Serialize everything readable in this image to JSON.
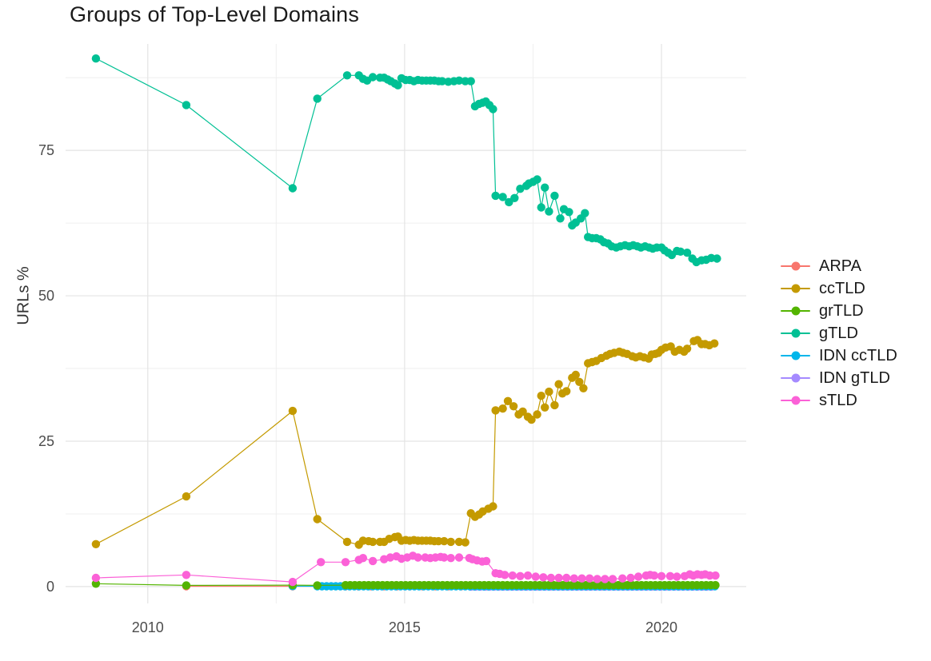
{
  "title": "Groups of Top-Level Domains",
  "axes": {
    "y_label": "URLs %",
    "x_tick_labels": [
      "2010",
      "2015",
      "2020"
    ],
    "y_tick_labels": [
      "0",
      "25",
      "50",
      "75"
    ]
  },
  "legend": {
    "items": [
      {
        "label": "ARPA",
        "color": "#F8766D"
      },
      {
        "label": "ccTLD",
        "color": "#C49A00"
      },
      {
        "label": "grTLD",
        "color": "#53B400"
      },
      {
        "label": "gTLD",
        "color": "#00C094"
      },
      {
        "label": "IDN ccTLD",
        "color": "#00B6EB"
      },
      {
        "label": "IDN gTLD",
        "color": "#A58AFF"
      },
      {
        "label": "sTLD",
        "color": "#FB61D7"
      }
    ]
  },
  "colors": {
    "grid_major": "#e4e4e4",
    "grid_minor": "#efefef",
    "tick_text": "#4d4d4d",
    "title_text": "#1a1a1a"
  },
  "chart_data": {
    "type": "line",
    "title": "Groups of Top-Level Domains",
    "xlabel": "",
    "ylabel": "URLs %",
    "xlim": [
      2008.4,
      2021.65
    ],
    "ylim": [
      -2.9,
      93.3
    ],
    "x_major_ticks": [
      2010,
      2015,
      2020
    ],
    "x_minor_gridlines": [
      2012.5,
      2017.5
    ],
    "y_major_ticks": [
      0,
      25,
      50,
      75
    ],
    "y_minor_gridlines": [
      12.5,
      37.5,
      62.5,
      87.5
    ],
    "grid": "major+minor",
    "legend_position": "right",
    "markers": true,
    "draw_order": [
      "ARPA",
      "IDN gTLD",
      "IDN ccTLD",
      "grTLD",
      "sTLD",
      "ccTLD",
      "gTLD"
    ],
    "series": [
      {
        "name": "ARPA",
        "color": "#F8766D",
        "points": [
          [
            2010.75,
            0.05
          ],
          [
            2012.82,
            0.05
          ]
        ],
        "runs": [
          {
            "from": 2013.85,
            "to": 2021.05,
            "step": 0.25,
            "value": 0.05
          }
        ]
      },
      {
        "name": "ccTLD",
        "color": "#C49A00",
        "points": [
          [
            2008.99,
            7.3
          ],
          [
            2010.75,
            15.5
          ],
          [
            2012.82,
            30.2
          ],
          [
            2013.3,
            11.6
          ],
          [
            2013.88,
            7.7
          ],
          [
            2014.11,
            7.2
          ],
          [
            2014.19,
            7.9
          ],
          [
            2014.3,
            7.8
          ],
          [
            2014.38,
            7.7
          ],
          [
            2014.52,
            7.7
          ],
          [
            2014.6,
            7.7
          ],
          [
            2014.7,
            8.2
          ],
          [
            2014.81,
            8.5
          ],
          [
            2014.87,
            8.6
          ],
          [
            2014.94,
            7.9
          ],
          [
            2015.02,
            8.0
          ],
          [
            2015.1,
            7.9
          ],
          [
            2015.18,
            8.0
          ],
          [
            2015.26,
            7.9
          ],
          [
            2015.34,
            7.9
          ],
          [
            2015.42,
            7.9
          ],
          [
            2015.5,
            7.9
          ],
          [
            2015.58,
            7.8
          ],
          [
            2015.66,
            7.8
          ],
          [
            2015.77,
            7.8
          ],
          [
            2015.9,
            7.7
          ],
          [
            2016.06,
            7.7
          ],
          [
            2016.18,
            7.6
          ],
          [
            2016.29,
            12.6
          ],
          [
            2016.37,
            12.0
          ],
          [
            2016.45,
            12.4
          ],
          [
            2016.52,
            12.9
          ],
          [
            2016.63,
            13.4
          ],
          [
            2016.72,
            13.8
          ],
          [
            2016.77,
            30.3
          ],
          [
            2016.91,
            30.6
          ],
          [
            2017.01,
            31.9
          ],
          [
            2017.12,
            31.0
          ],
          [
            2017.22,
            29.6
          ],
          [
            2017.3,
            30.1
          ],
          [
            2017.4,
            29.2
          ],
          [
            2017.47,
            28.7
          ],
          [
            2017.58,
            29.6
          ],
          [
            2017.66,
            32.8
          ],
          [
            2017.73,
            30.8
          ],
          [
            2017.81,
            33.5
          ],
          [
            2017.92,
            31.2
          ],
          [
            2018.0,
            34.8
          ],
          [
            2018.07,
            33.2
          ],
          [
            2018.15,
            33.6
          ],
          [
            2018.26,
            35.9
          ],
          [
            2018.33,
            36.4
          ],
          [
            2018.4,
            35.2
          ],
          [
            2018.48,
            34.1
          ],
          [
            2018.57,
            38.4
          ],
          [
            2018.65,
            38.6
          ],
          [
            2018.73,
            38.8
          ],
          [
            2018.83,
            39.3
          ],
          [
            2018.93,
            39.7
          ],
          [
            2019.0,
            40.0
          ],
          [
            2019.08,
            40.2
          ],
          [
            2019.18,
            40.4
          ],
          [
            2019.25,
            40.2
          ],
          [
            2019.33,
            40.0
          ],
          [
            2019.43,
            39.6
          ],
          [
            2019.5,
            39.4
          ],
          [
            2019.58,
            39.6
          ],
          [
            2019.66,
            39.4
          ],
          [
            2019.75,
            39.2
          ],
          [
            2019.81,
            39.9
          ],
          [
            2019.88,
            40.0
          ],
          [
            2019.94,
            40.2
          ],
          [
            2020.0,
            40.7
          ],
          [
            2020.08,
            41.1
          ],
          [
            2020.18,
            41.3
          ],
          [
            2020.26,
            40.4
          ],
          [
            2020.35,
            40.7
          ],
          [
            2020.44,
            40.4
          ],
          [
            2020.5,
            40.9
          ],
          [
            2020.63,
            42.2
          ],
          [
            2020.7,
            42.4
          ],
          [
            2020.78,
            41.7
          ],
          [
            2020.85,
            41.7
          ],
          [
            2020.93,
            41.5
          ],
          [
            2021.03,
            41.8
          ]
        ],
        "runs": []
      },
      {
        "name": "grTLD",
        "color": "#53B400",
        "points": [
          [
            2008.99,
            0.5
          ],
          [
            2010.75,
            0.2
          ],
          [
            2012.82,
            0.25
          ],
          [
            2013.3,
            0.2
          ]
        ],
        "runs": [
          {
            "from": 2013.85,
            "to": 2021.05,
            "step": 0.09,
            "value": 0.25
          }
        ]
      },
      {
        "name": "gTLD",
        "color": "#00C094",
        "points": [
          [
            2008.99,
            90.8
          ],
          [
            2010.75,
            82.8
          ],
          [
            2012.82,
            68.5
          ],
          [
            2013.3,
            83.9
          ],
          [
            2013.88,
            87.9
          ],
          [
            2014.11,
            87.9
          ],
          [
            2014.19,
            87.3
          ],
          [
            2014.27,
            87.0
          ],
          [
            2014.38,
            87.6
          ],
          [
            2014.52,
            87.5
          ],
          [
            2014.6,
            87.5
          ],
          [
            2014.67,
            87.2
          ],
          [
            2014.73,
            86.9
          ],
          [
            2014.81,
            86.5
          ],
          [
            2014.87,
            86.2
          ],
          [
            2014.94,
            87.4
          ],
          [
            2015.02,
            87.1
          ],
          [
            2015.1,
            87.1
          ],
          [
            2015.18,
            86.9
          ],
          [
            2015.26,
            87.1
          ],
          [
            2015.34,
            87.0
          ],
          [
            2015.42,
            87.0
          ],
          [
            2015.5,
            87.0
          ],
          [
            2015.58,
            87.0
          ],
          [
            2015.66,
            86.9
          ],
          [
            2015.73,
            86.9
          ],
          [
            2015.85,
            86.8
          ],
          [
            2015.96,
            86.9
          ],
          [
            2016.06,
            87.0
          ],
          [
            2016.18,
            86.9
          ],
          [
            2016.29,
            86.9
          ],
          [
            2016.37,
            82.6
          ],
          [
            2016.45,
            83.0
          ],
          [
            2016.52,
            83.2
          ],
          [
            2016.58,
            83.4
          ],
          [
            2016.65,
            82.8
          ],
          [
            2016.72,
            82.1
          ],
          [
            2016.77,
            67.2
          ],
          [
            2016.91,
            67.0
          ],
          [
            2017.03,
            66.1
          ],
          [
            2017.14,
            66.8
          ],
          [
            2017.25,
            68.4
          ],
          [
            2017.37,
            68.9
          ],
          [
            2017.42,
            69.3
          ],
          [
            2017.5,
            69.6
          ],
          [
            2017.58,
            70.0
          ],
          [
            2017.66,
            65.2
          ],
          [
            2017.73,
            68.6
          ],
          [
            2017.81,
            64.5
          ],
          [
            2017.92,
            67.2
          ],
          [
            2018.03,
            63.3
          ],
          [
            2018.1,
            64.9
          ],
          [
            2018.2,
            64.4
          ],
          [
            2018.26,
            62.1
          ],
          [
            2018.33,
            62.6
          ],
          [
            2018.43,
            63.3
          ],
          [
            2018.51,
            64.2
          ],
          [
            2018.57,
            60.1
          ],
          [
            2018.65,
            59.9
          ],
          [
            2018.73,
            59.9
          ],
          [
            2018.81,
            59.7
          ],
          [
            2018.88,
            59.2
          ],
          [
            2018.96,
            59.0
          ],
          [
            2019.03,
            58.5
          ],
          [
            2019.12,
            58.3
          ],
          [
            2019.2,
            58.5
          ],
          [
            2019.29,
            58.7
          ],
          [
            2019.37,
            58.5
          ],
          [
            2019.45,
            58.7
          ],
          [
            2019.53,
            58.5
          ],
          [
            2019.6,
            58.3
          ],
          [
            2019.68,
            58.5
          ],
          [
            2019.76,
            58.3
          ],
          [
            2019.83,
            58.1
          ],
          [
            2019.91,
            58.3
          ],
          [
            2020.0,
            58.3
          ],
          [
            2020.06,
            57.8
          ],
          [
            2020.13,
            57.4
          ],
          [
            2020.2,
            57.0
          ],
          [
            2020.3,
            57.7
          ],
          [
            2020.37,
            57.6
          ],
          [
            2020.5,
            57.4
          ],
          [
            2020.6,
            56.4
          ],
          [
            2020.68,
            55.8
          ],
          [
            2020.78,
            56.1
          ],
          [
            2020.87,
            56.2
          ],
          [
            2020.97,
            56.5
          ],
          [
            2021.08,
            56.4
          ]
        ],
        "runs": []
      },
      {
        "name": "IDN ccTLD",
        "color": "#00B6EB",
        "points": [
          [
            2012.82,
            0.08
          ]
        ],
        "runs": [
          {
            "from": 2013.3,
            "to": 2021.05,
            "step": 0.09,
            "value": 0.05
          }
        ]
      },
      {
        "name": "IDN gTLD",
        "color": "#A58AFF",
        "points": [],
        "runs": [
          {
            "from": 2016.29,
            "to": 2021.05,
            "step": 0.09,
            "value": 0.0
          }
        ]
      },
      {
        "name": "sTLD",
        "color": "#FB61D7",
        "points": [
          [
            2008.99,
            1.5
          ],
          [
            2010.75,
            2.0
          ],
          [
            2012.82,
            0.8
          ],
          [
            2013.37,
            4.2
          ],
          [
            2013.85,
            4.2
          ],
          [
            2014.11,
            4.6
          ],
          [
            2014.19,
            4.9
          ],
          [
            2014.38,
            4.4
          ],
          [
            2014.6,
            4.7
          ],
          [
            2014.72,
            5.0
          ],
          [
            2014.84,
            5.2
          ],
          [
            2014.94,
            4.8
          ],
          [
            2015.05,
            5.0
          ],
          [
            2015.16,
            5.3
          ],
          [
            2015.26,
            5.0
          ],
          [
            2015.4,
            5.0
          ],
          [
            2015.5,
            4.9
          ],
          [
            2015.6,
            5.0
          ],
          [
            2015.7,
            5.1
          ],
          [
            2015.77,
            5.0
          ],
          [
            2015.9,
            4.9
          ],
          [
            2016.06,
            5.0
          ],
          [
            2016.26,
            4.9
          ],
          [
            2016.32,
            4.7
          ],
          [
            2016.41,
            4.5
          ],
          [
            2016.51,
            4.3
          ],
          [
            2016.59,
            4.4
          ],
          [
            2016.77,
            2.3
          ],
          [
            2016.85,
            2.2
          ],
          [
            2016.95,
            2.0
          ],
          [
            2017.1,
            1.9
          ],
          [
            2017.25,
            1.8
          ],
          [
            2017.4,
            1.9
          ],
          [
            2017.55,
            1.7
          ],
          [
            2017.7,
            1.6
          ],
          [
            2017.85,
            1.5
          ],
          [
            2018.0,
            1.5
          ],
          [
            2018.15,
            1.5
          ],
          [
            2018.3,
            1.4
          ],
          [
            2018.45,
            1.4
          ],
          [
            2018.6,
            1.4
          ],
          [
            2018.75,
            1.3
          ],
          [
            2018.9,
            1.3
          ],
          [
            2019.05,
            1.3
          ],
          [
            2019.24,
            1.4
          ],
          [
            2019.4,
            1.5
          ],
          [
            2019.55,
            1.7
          ],
          [
            2019.7,
            1.9
          ],
          [
            2019.78,
            2.0
          ],
          [
            2019.86,
            1.9
          ],
          [
            2020.0,
            1.8
          ],
          [
            2020.17,
            1.8
          ],
          [
            2020.3,
            1.7
          ],
          [
            2020.45,
            1.8
          ],
          [
            2020.55,
            2.1
          ],
          [
            2020.62,
            1.9
          ],
          [
            2020.7,
            2.1
          ],
          [
            2020.78,
            2.0
          ],
          [
            2020.85,
            2.1
          ],
          [
            2020.94,
            1.9
          ],
          [
            2021.05,
            1.9
          ]
        ],
        "runs": []
      }
    ]
  }
}
